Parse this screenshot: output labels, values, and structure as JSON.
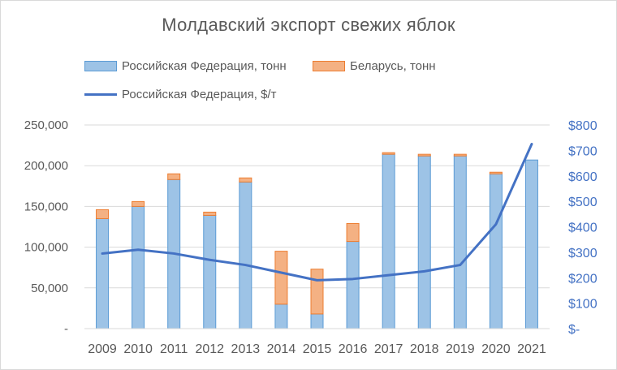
{
  "chart_data": {
    "type": "bar",
    "title": "Молдавский экспорт свежих яблок",
    "categories": [
      "2009",
      "2010",
      "2011",
      "2012",
      "2013",
      "2014",
      "2015",
      "2016",
      "2017",
      "2018",
      "2019",
      "2020",
      "2021"
    ],
    "series": [
      {
        "name": "Российская Федерация, тонн",
        "type": "bar",
        "axis": "left",
        "color": "#9DC3E6",
        "values": [
          135000,
          150000,
          183000,
          139000,
          180000,
          30000,
          18000,
          107000,
          214000,
          212000,
          212000,
          190000,
          207000
        ]
      },
      {
        "name": "Беларусь, тонн",
        "type": "bar-stacked",
        "axis": "left",
        "color": "#F4B183",
        "values": [
          11000,
          6000,
          7000,
          4000,
          5000,
          65000,
          55000,
          22000,
          2000,
          2000,
          2000,
          2000,
          0
        ]
      },
      {
        "name": "Российская Федерация, $/т",
        "type": "line",
        "axis": "right",
        "color": "#4472C4",
        "values": [
          295,
          310,
          295,
          270,
          250,
          220,
          190,
          195,
          210,
          225,
          250,
          410,
          725
        ]
      }
    ],
    "left_axis": {
      "ylim": [
        0,
        250000
      ],
      "ticks": [
        "-",
        "50,000",
        "100,000",
        "150,000",
        "200,000",
        "250,000"
      ]
    },
    "right_axis": {
      "ylim": [
        0,
        800
      ],
      "ticks": [
        "$-",
        "$100",
        "$200",
        "$300",
        "$400",
        "$500",
        "$600",
        "$700",
        "$800"
      ]
    },
    "grid": true,
    "legend_position": "top-left"
  }
}
